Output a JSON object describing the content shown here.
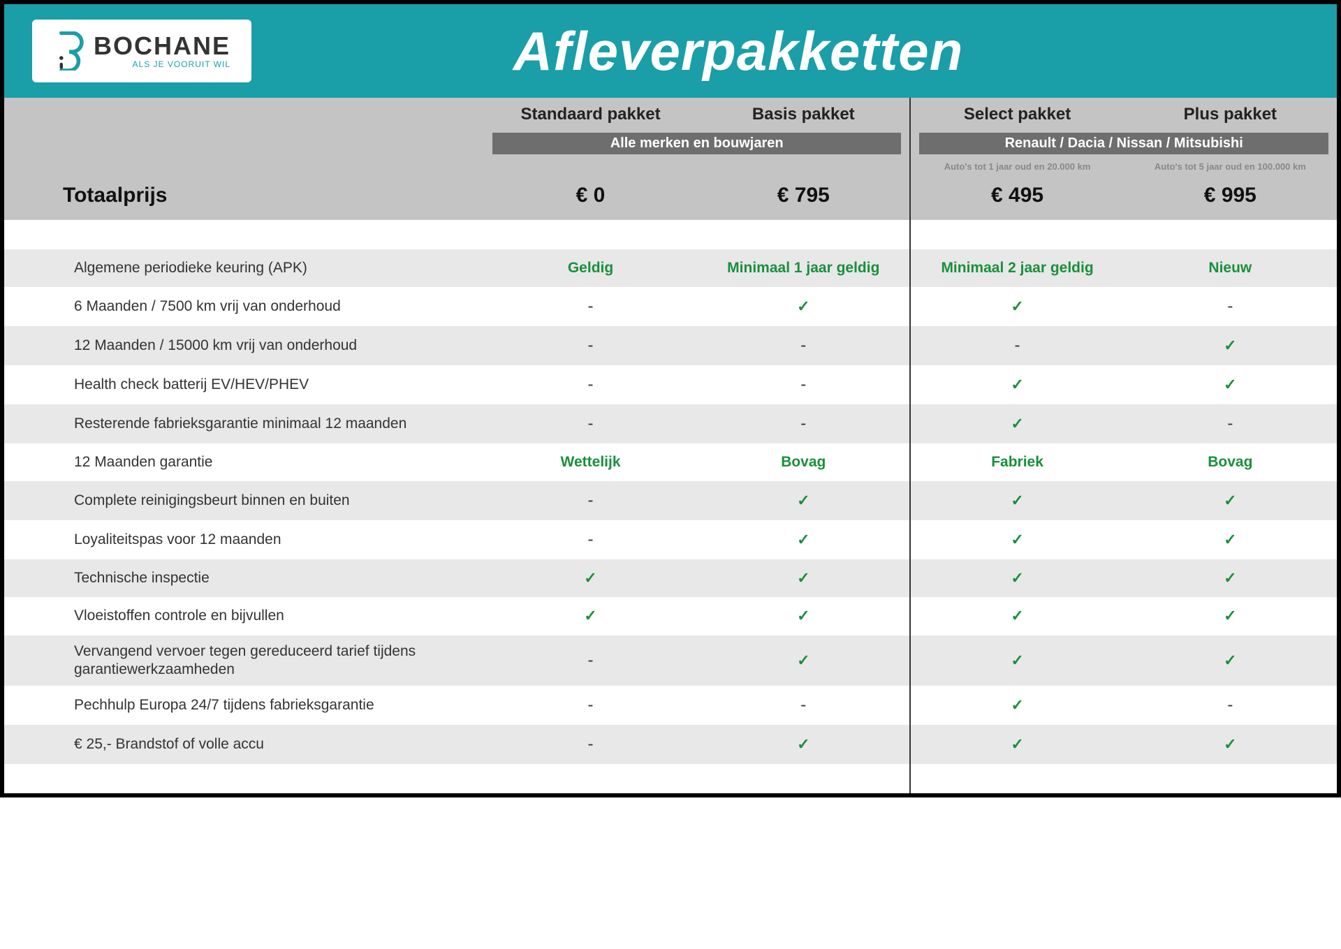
{
  "brand": {
    "name": "BOCHANE",
    "tagline": "ALS JE VOORUIT WIL"
  },
  "title": "Afleverpakketten",
  "colors": {
    "header_bg": "#1a9ea8",
    "band_bg": "#6e6e6e",
    "thead_bg": "#c4c4c4",
    "alt_row_bg": "#e8e8e8",
    "green": "#1a8f3c",
    "text": "#333333"
  },
  "packages": [
    {
      "name": "Standaard pakket",
      "group": 0,
      "subnote": "",
      "price": "€ 0"
    },
    {
      "name": "Basis pakket",
      "group": 0,
      "subnote": "",
      "price": "€ 795"
    },
    {
      "name": "Select pakket",
      "group": 1,
      "subnote": "Auto's tot 1 jaar oud en 20.000 km",
      "price": "€ 495"
    },
    {
      "name": "Plus pakket",
      "group": 1,
      "subnote": "Auto's tot 5 jaar oud en 100.000 km",
      "price": "€ 995"
    }
  ],
  "groups": [
    "Alle merken en bouwjaren",
    "Renault / Dacia / Nissan / Mitsubishi"
  ],
  "totaal_label": "Totaalprijs",
  "rows": [
    {
      "label": "Algemene periodieke keuring (APK)",
      "alt": true,
      "cells": [
        {
          "t": "text",
          "v": "Geldig"
        },
        {
          "t": "text",
          "v": "Minimaal 1 jaar geldig"
        },
        {
          "t": "text",
          "v": "Minimaal 2 jaar geldig"
        },
        {
          "t": "text",
          "v": "Nieuw"
        }
      ]
    },
    {
      "label": "6 Maanden / 7500 km vrij van onderhoud",
      "alt": false,
      "cells": [
        {
          "t": "dash"
        },
        {
          "t": "check"
        },
        {
          "t": "check"
        },
        {
          "t": "dash"
        }
      ]
    },
    {
      "label": "12 Maanden / 15000 km vrij van onderhoud",
      "alt": true,
      "cells": [
        {
          "t": "dash"
        },
        {
          "t": "dash"
        },
        {
          "t": "dash"
        },
        {
          "t": "check"
        }
      ]
    },
    {
      "label": "Health check batterij EV/HEV/PHEV",
      "alt": false,
      "cells": [
        {
          "t": "dash"
        },
        {
          "t": "dash"
        },
        {
          "t": "check"
        },
        {
          "t": "check"
        }
      ]
    },
    {
      "label": "Resterende fabrieksgarantie minimaal 12 maanden",
      "alt": true,
      "cells": [
        {
          "t": "dash"
        },
        {
          "t": "dash"
        },
        {
          "t": "check"
        },
        {
          "t": "dash"
        }
      ]
    },
    {
      "label": "12 Maanden  garantie",
      "alt": false,
      "cells": [
        {
          "t": "text",
          "v": "Wettelijk"
        },
        {
          "t": "text",
          "v": "Bovag"
        },
        {
          "t": "text",
          "v": "Fabriek"
        },
        {
          "t": "text",
          "v": "Bovag"
        }
      ]
    },
    {
      "label": "Complete reinigingsbeurt binnen en buiten",
      "alt": true,
      "cells": [
        {
          "t": "dash"
        },
        {
          "t": "check"
        },
        {
          "t": "check"
        },
        {
          "t": "check"
        }
      ]
    },
    {
      "label": "Loyaliteitspas voor 12 maanden",
      "alt": false,
      "cells": [
        {
          "t": "dash"
        },
        {
          "t": "check"
        },
        {
          "t": "check"
        },
        {
          "t": "check"
        }
      ]
    },
    {
      "label": "Technische inspectie",
      "alt": true,
      "cells": [
        {
          "t": "check"
        },
        {
          "t": "check"
        },
        {
          "t": "check"
        },
        {
          "t": "check"
        }
      ]
    },
    {
      "label": "Vloeistoffen controle en bijvullen",
      "alt": false,
      "cells": [
        {
          "t": "check"
        },
        {
          "t": "check"
        },
        {
          "t": "check"
        },
        {
          "t": "check"
        }
      ]
    },
    {
      "label": "Vervangend vervoer tegen gereduceerd tarief tijdens garantiewerkzaamheden",
      "alt": true,
      "cells": [
        {
          "t": "dash"
        },
        {
          "t": "check"
        },
        {
          "t": "check"
        },
        {
          "t": "check"
        }
      ]
    },
    {
      "label": "Pechhulp Europa 24/7 tijdens fabrieksgarantie",
      "alt": false,
      "cells": [
        {
          "t": "dash"
        },
        {
          "t": "dash"
        },
        {
          "t": "check"
        },
        {
          "t": "dash"
        }
      ]
    },
    {
      "label": "€ 25,- Brandstof of  volle accu",
      "alt": true,
      "cells": [
        {
          "t": "dash"
        },
        {
          "t": "check"
        },
        {
          "t": "check"
        },
        {
          "t": "check"
        }
      ]
    }
  ]
}
